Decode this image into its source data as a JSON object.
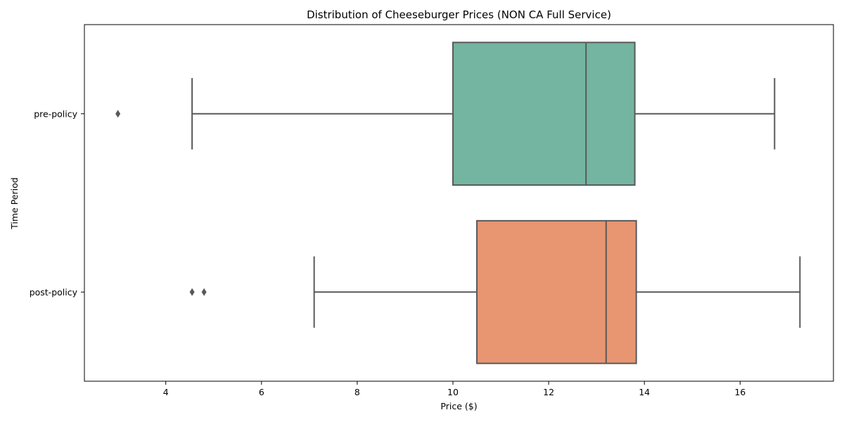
{
  "chart_data": {
    "type": "boxplot",
    "title": "Distribution of Cheeseburger Prices (NON CA Full Service)",
    "xlabel": "Price ($)",
    "ylabel": "Time Period",
    "xlim": [
      2.3,
      17.95
    ],
    "xticks": [
      4,
      6,
      8,
      10,
      12,
      14,
      16
    ],
    "orientation": "horizontal",
    "grid": false,
    "legend": "none",
    "line_color": "#595959",
    "categories": [
      "pre-policy",
      "post-policy"
    ],
    "series": [
      {
        "category": "pre-policy",
        "whisker_low": 4.55,
        "q1": 10.0,
        "median": 12.78,
        "q3": 13.8,
        "whisker_high": 16.72,
        "outliers": [
          3.0
        ],
        "color": "#73b5a0"
      },
      {
        "category": "post-policy",
        "whisker_low": 7.1,
        "q1": 10.5,
        "median": 13.2,
        "q3": 13.83,
        "whisker_high": 17.25,
        "outliers": [
          4.55,
          4.8
        ],
        "color": "#e89572"
      }
    ]
  }
}
